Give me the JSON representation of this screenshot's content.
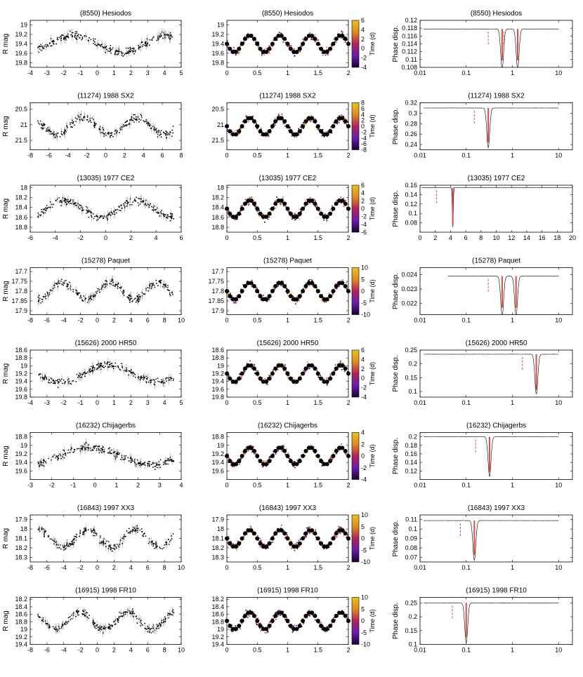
{
  "figure": {
    "colors": {
      "axis": "#000000",
      "points": "#000000",
      "errorbars": "#9a9a9a",
      "peak": "#e8473f",
      "median_dot": "#000000"
    },
    "colorbar_gradient": [
      "#1a0033",
      "#6a1cb0",
      "#b2225a",
      "#e08a1c",
      "#e8c21a"
    ]
  },
  "chart_data": [
    {
      "type": "scatter",
      "panel": "lightcurve",
      "title": "(8550) Hesiodos",
      "ylabel": "R mag",
      "xlim": [
        -4,
        5
      ],
      "ylim": [
        19.9,
        18.9
      ],
      "xticks": [
        -4,
        -3,
        -2,
        -1,
        0,
        1,
        2,
        3,
        4,
        5
      ],
      "yticks": [
        19,
        19.2,
        19.4,
        19.6,
        19.8
      ],
      "xticklabels": [
        "-4",
        "-3",
        "-2",
        "-1",
        "0",
        "1",
        "2",
        "3",
        "4",
        "5"
      ],
      "yticklabels": [
        "19",
        "19.2",
        "19.4",
        "19.6",
        "19.8"
      ]
    },
    {
      "type": "scatter",
      "panel": "phased",
      "title": "(8550) Hesiodos",
      "ylim": [
        19.9,
        18.9
      ],
      "xlim": [
        0,
        2
      ],
      "xticks": [
        0,
        0.5,
        1,
        1.5,
        2
      ],
      "xticklabels": [
        "0",
        "0.5",
        "1",
        "1.5",
        "2"
      ],
      "yticks": [
        19,
        19.2,
        19.4,
        19.6,
        19.8
      ],
      "yticklabels": [
        "19",
        "19.2",
        "19.4",
        "19.6",
        "19.8"
      ],
      "cbar_label": "Time (d)",
      "cbar_range": [
        -4,
        6
      ],
      "cbar_ticks": [
        -4,
        -2,
        0,
        2,
        4,
        6
      ],
      "cbar_ticklabels": [
        "-4",
        "-2",
        "0",
        "2",
        "4",
        "6"
      ]
    },
    {
      "type": "line",
      "panel": "periodogram",
      "title": "(8550) Hesiodos",
      "ylabel": "Phase disp.",
      "xscale": "log",
      "xlim": [
        0.01,
        20
      ],
      "ylim": [
        0.108,
        0.12
      ],
      "xticks": [
        0.01,
        0.1,
        1,
        10
      ],
      "xticklabels": [
        "0.01",
        "0.1",
        "1",
        "10"
      ],
      "yticks": [
        0.108,
        0.11,
        0.112,
        0.114,
        0.116,
        0.118,
        0.12
      ],
      "yticklabels": [
        "0.108",
        "0.11",
        "0.112",
        "0.114",
        "0.116",
        "0.118",
        "0.12"
      ],
      "peaks": [
        0.6,
        1.3
      ],
      "baseline": 0.1178,
      "start": 0.012
    },
    {
      "type": "scatter",
      "panel": "lightcurve",
      "title": "(11274) 1988 SX2",
      "ylabel": "R mag",
      "xlim": [
        -8,
        8
      ],
      "ylim": [
        21.8,
        20.3
      ],
      "xticks": [
        -8,
        -6,
        -4,
        -2,
        0,
        2,
        4,
        6,
        8
      ],
      "xticklabels": [
        "-8",
        "-6",
        "-4",
        "-2",
        "0",
        "2",
        "4",
        "6",
        "8"
      ],
      "yticks": [
        20.5,
        21,
        21.5
      ],
      "yticklabels": [
        "20.5",
        "21",
        "21.5"
      ]
    },
    {
      "type": "scatter",
      "panel": "phased",
      "title": "(11274) 1988 SX2",
      "ylim": [
        21.8,
        20.3
      ],
      "xlim": [
        0,
        2
      ],
      "xticks": [
        0,
        0.5,
        1,
        1.5,
        2
      ],
      "xticklabels": [
        "0",
        "0.5",
        "1",
        "1.5",
        "2"
      ],
      "yticks": [
        20.5,
        21,
        21.5
      ],
      "yticklabels": [
        "20.5",
        "21",
        "21.5"
      ],
      "cbar_label": "Time (d)",
      "cbar_range": [
        -8,
        8
      ],
      "cbar_ticks": [
        -8,
        -6,
        -4,
        -2,
        0,
        2,
        4,
        6,
        8
      ],
      "cbar_ticklabels": [
        "-8",
        "-6",
        "-4",
        "-2",
        "0",
        "2",
        "4",
        "6",
        "8"
      ]
    },
    {
      "type": "line",
      "panel": "periodogram",
      "title": "(11274) 1988 SX2",
      "ylabel": "Phase disp.",
      "xscale": "log",
      "xlim": [
        0.01,
        20
      ],
      "ylim": [
        0.23,
        0.32
      ],
      "xticks": [
        0.01,
        0.1,
        1,
        10
      ],
      "xticklabels": [
        "0.01",
        "0.1",
        "1",
        "10"
      ],
      "yticks": [
        0.24,
        0.26,
        0.28,
        0.3,
        0.32
      ],
      "yticklabels": [
        "0.24",
        "0.26",
        "0.28",
        "0.3",
        "0.32"
      ],
      "peaks": [
        0.3
      ],
      "baseline": 0.31,
      "start": 0.012
    },
    {
      "type": "scatter",
      "panel": "lightcurve",
      "title": "(13035) 1977 CE2",
      "ylabel": "R mag",
      "xlim": [
        -6,
        6
      ],
      "ylim": [
        18.9,
        17.95
      ],
      "xticks": [
        -6,
        -4,
        -2,
        0,
        2,
        4,
        6
      ],
      "xticklabels": [
        "-6",
        "-4",
        "-2",
        "0",
        "2",
        "4",
        "6"
      ],
      "yticks": [
        18,
        18.2,
        18.4,
        18.6,
        18.8
      ],
      "yticklabels": [
        "18",
        "18.2",
        "18.4",
        "18.6",
        "18.8"
      ]
    },
    {
      "type": "scatter",
      "panel": "phased",
      "title": "(13035) 1977 CE2",
      "ylim": [
        18.9,
        17.95
      ],
      "xlim": [
        0,
        2
      ],
      "xticks": [
        0,
        0.5,
        1,
        1.5,
        2
      ],
      "xticklabels": [
        "0",
        "0.5",
        "1",
        "1.5",
        "2"
      ],
      "yticks": [
        18,
        18.2,
        18.4,
        18.6,
        18.8
      ],
      "yticklabels": [
        "18",
        "18.2",
        "18.4",
        "18.6",
        "18.8"
      ],
      "cbar_label": "Time (d)",
      "cbar_range": [
        -6,
        6
      ],
      "cbar_ticks": [
        -6,
        -4,
        -2,
        0,
        2,
        4,
        6
      ],
      "cbar_ticklabels": [
        "-6",
        "-4",
        "-2",
        "0",
        "2",
        "4",
        "6"
      ]
    },
    {
      "type": "line",
      "panel": "periodogram",
      "title": "(13035) 1977 CE2",
      "ylabel": "Phase disp.",
      "xscale": "linear",
      "xlim": [
        0,
        20
      ],
      "ylim": [
        0.06,
        0.16
      ],
      "xticks": [
        0,
        2,
        4,
        6,
        8,
        10,
        12,
        14,
        16,
        18,
        20
      ],
      "xticklabels": [
        "0",
        "2",
        "4",
        "6",
        "8",
        "10",
        "12",
        "14",
        "16",
        "18",
        "20"
      ],
      "yticks": [
        0.08,
        0.1,
        0.12,
        0.14,
        0.16
      ],
      "yticklabels": [
        "0.08",
        "0.1",
        "0.12",
        "0.14",
        "0.16"
      ],
      "peaks": [
        4.3
      ],
      "baseline": 0.155,
      "start": 0.2
    },
    {
      "type": "scatter",
      "panel": "lightcurve",
      "title": "(15278) Paquet",
      "ylabel": "R mag",
      "xlim": [
        -8,
        10
      ],
      "ylim": [
        17.92,
        17.68
      ],
      "xticks": [
        -8,
        -6,
        -4,
        -2,
        0,
        2,
        4,
        6,
        8,
        10
      ],
      "xticklabels": [
        "-8",
        "-6",
        "-4",
        "-2",
        "0",
        "2",
        "4",
        "6",
        "8",
        "10"
      ],
      "yticks": [
        17.7,
        17.75,
        17.8,
        17.85,
        17.9
      ],
      "yticklabels": [
        "17.7",
        "17.75",
        "17.8",
        "17.85",
        "17.9"
      ]
    },
    {
      "type": "scatter",
      "panel": "phased",
      "title": "(15278) Paquet",
      "ylim": [
        17.92,
        17.68
      ],
      "xlim": [
        0,
        2
      ],
      "xticks": [
        0,
        0.5,
        1,
        1.5,
        2
      ],
      "xticklabels": [
        "0",
        "0.5",
        "1",
        "1.5",
        "2"
      ],
      "yticks": [
        17.7,
        17.75,
        17.8,
        17.85,
        17.9
      ],
      "yticklabels": [
        "17.7",
        "17.75",
        "17.8",
        "17.85",
        "17.9"
      ],
      "cbar_label": "Time (d)",
      "cbar_range": [
        -10,
        10
      ],
      "cbar_ticks": [
        -10,
        -5,
        0,
        5,
        10
      ],
      "cbar_ticklabels": [
        "-10",
        "-5",
        "0",
        "5",
        "10"
      ]
    },
    {
      "type": "line",
      "panel": "periodogram",
      "title": "(15278) Paquet",
      "ylabel": "Phase disp.",
      "xscale": "log",
      "xlim": [
        0.01,
        20
      ],
      "ylim": [
        0.0212,
        0.0245
      ],
      "xticks": [
        0.01,
        0.1,
        1,
        10
      ],
      "xticklabels": [
        "0.01",
        "0.1",
        "1",
        "10"
      ],
      "yticks": [
        0.022,
        0.023,
        0.024
      ],
      "yticklabels": [
        "0.022",
        "0.023",
        "0.024"
      ],
      "peaks": [
        0.6,
        1.2
      ],
      "baseline": 0.0239,
      "start": 0.04
    },
    {
      "type": "scatter",
      "panel": "lightcurve",
      "title": "(15626) 2000 HR50",
      "ylabel": "R mag",
      "xlim": [
        -4,
        5
      ],
      "ylim": [
        19.8,
        18.6
      ],
      "xticks": [
        -4,
        -3,
        -2,
        -1,
        0,
        1,
        2,
        3,
        4,
        5
      ],
      "xticklabels": [
        "-4",
        "-3",
        "-2",
        "-1",
        "0",
        "1",
        "2",
        "3",
        "4",
        "5"
      ],
      "yticks": [
        18.6,
        18.8,
        19,
        19.2,
        19.4,
        19.6,
        19.8
      ],
      "yticklabels": [
        "18.6",
        "18.8",
        "19",
        "19.2",
        "19.4",
        "19.6",
        "19.8"
      ]
    },
    {
      "type": "scatter",
      "panel": "phased",
      "title": "(15626) 2000 HR50",
      "ylim": [
        19.8,
        18.6
      ],
      "xlim": [
        0,
        2
      ],
      "xticks": [
        0,
        0.5,
        1,
        1.5,
        2
      ],
      "xticklabels": [
        "0",
        "0.5",
        "1",
        "1.5",
        "2"
      ],
      "yticks": [
        18.6,
        18.8,
        19,
        19.2,
        19.4,
        19.6,
        19.8
      ],
      "yticklabels": [
        "18.6",
        "18.8",
        "19",
        "19.2",
        "19.4",
        "19.6",
        "19.8"
      ],
      "cbar_label": "Time (d)",
      "cbar_range": [
        -4,
        6
      ],
      "cbar_ticks": [
        -4,
        -2,
        0,
        2,
        4,
        6
      ],
      "cbar_ticklabels": [
        "-4",
        "-2",
        "0",
        "2",
        "4",
        "6"
      ]
    },
    {
      "type": "line",
      "panel": "periodogram",
      "title": "(15626) 2000 HR50",
      "ylabel": "Phase disp.",
      "xscale": "log",
      "xlim": [
        0.01,
        20
      ],
      "ylim": [
        0.08,
        0.25
      ],
      "xticks": [
        0.01,
        0.1,
        1,
        10
      ],
      "xticklabels": [
        "0.01",
        "0.1",
        "1",
        "10"
      ],
      "yticks": [
        0.1,
        0.15,
        0.2,
        0.25
      ],
      "yticklabels": [
        "0.1",
        "0.15",
        "0.2",
        "0.25"
      ],
      "peaks": [
        3.3
      ],
      "baseline": 0.235,
      "start": 0.012
    },
    {
      "type": "scatter",
      "panel": "lightcurve",
      "title": "(16232) Chijagerbs",
      "ylabel": "R mag",
      "xlim": [
        -3,
        4
      ],
      "ylim": [
        19.8,
        18.7
      ],
      "xticks": [
        -3,
        -2,
        -1,
        0,
        1,
        2,
        3,
        4
      ],
      "xticklabels": [
        "-3",
        "-2",
        "-1",
        "0",
        "1",
        "2",
        "3",
        "4"
      ],
      "yticks": [
        18.8,
        19,
        19.2,
        19.4,
        19.6
      ],
      "yticklabels": [
        "18.8",
        "19",
        "19.2",
        "19.4",
        "19.6"
      ]
    },
    {
      "type": "scatter",
      "panel": "phased",
      "title": "(16232) Chijagerbs",
      "ylim": [
        19.8,
        18.7
      ],
      "xlim": [
        0,
        2
      ],
      "xticks": [
        0,
        0.5,
        1,
        1.5,
        2
      ],
      "xticklabels": [
        "0",
        "0.5",
        "1",
        "1.5",
        "2"
      ],
      "yticks": [
        18.8,
        19,
        19.2,
        19.4,
        19.6
      ],
      "yticklabels": [
        "18.8",
        "19",
        "19.2",
        "19.4",
        "19.6"
      ],
      "cbar_label": "Time (d)",
      "cbar_range": [
        -4,
        4
      ],
      "cbar_ticks": [
        -4,
        -2,
        0,
        2,
        4
      ],
      "cbar_ticklabels": [
        "-4",
        "-2",
        "0",
        "2",
        "4"
      ]
    },
    {
      "type": "line",
      "panel": "periodogram",
      "title": "(16232) Chijagerbs",
      "ylabel": "Phase disp.",
      "xscale": "log",
      "xlim": [
        0.01,
        20
      ],
      "ylim": [
        0.1,
        0.21
      ],
      "xticks": [
        0.01,
        0.1,
        1,
        10
      ],
      "xticklabels": [
        "0.01",
        "0.1",
        "1",
        "10"
      ],
      "yticks": [
        0.12,
        0.14,
        0.16,
        0.18,
        0.2
      ],
      "yticklabels": [
        "0.12",
        "0.14",
        "0.16",
        "0.18",
        "0.2"
      ],
      "peaks": [
        0.32
      ],
      "baseline": 0.2,
      "start": 0.012
    },
    {
      "type": "scatter",
      "panel": "lightcurve",
      "title": "(16843) 1997 XX3",
      "ylabel": "R mag",
      "xlim": [
        -8,
        10
      ],
      "ylim": [
        18.35,
        17.85
      ],
      "xticks": [
        -8,
        -6,
        -4,
        -2,
        0,
        2,
        4,
        6,
        8,
        10
      ],
      "xticklabels": [
        "-8",
        "-6",
        "-4",
        "-2",
        "0",
        "2",
        "4",
        "6",
        "8",
        "10"
      ],
      "yticks": [
        17.9,
        18,
        18.1,
        18.2,
        18.3
      ],
      "yticklabels": [
        "17.9",
        "18",
        "18.1",
        "18.2",
        "18.3"
      ]
    },
    {
      "type": "scatter",
      "panel": "phased",
      "title": "(16843) 1997 XX3",
      "ylim": [
        18.35,
        17.85
      ],
      "xlim": [
        0,
        2
      ],
      "xticks": [
        0,
        0.5,
        1,
        1.5,
        2
      ],
      "xticklabels": [
        "0",
        "0.5",
        "1",
        "1.5",
        "2"
      ],
      "yticks": [
        17.9,
        18,
        18.1,
        18.2,
        18.3
      ],
      "yticklabels": [
        "17.9",
        "18",
        "18.1",
        "18.2",
        "18.3"
      ],
      "cbar_label": "Time (d)",
      "cbar_range": [
        -10,
        10
      ],
      "cbar_ticks": [
        -10,
        -5,
        0,
        5,
        10
      ],
      "cbar_ticklabels": [
        "-10",
        "-5",
        "0",
        "5",
        "10"
      ]
    },
    {
      "type": "line",
      "panel": "periodogram",
      "title": "(16843) 1997 XX3",
      "ylabel": "Phase disp.",
      "xscale": "log",
      "xlim": [
        0.01,
        20
      ],
      "ylim": [
        0.065,
        0.115
      ],
      "xticks": [
        0.01,
        0.1,
        1,
        10
      ],
      "xticklabels": [
        "0.01",
        "0.1",
        "1",
        "10"
      ],
      "yticks": [
        0.07,
        0.08,
        0.09,
        0.1,
        0.11
      ],
      "yticklabels": [
        "0.07",
        "0.08",
        "0.09",
        "0.1",
        "0.11"
      ],
      "peaks": [
        0.15
      ],
      "baseline": 0.109,
      "start": 0.012
    },
    {
      "type": "scatter",
      "panel": "lightcurve",
      "title": "(16915) 1998 FR10",
      "ylabel": "R mag",
      "xlim": [
        -8,
        10
      ],
      "ylim": [
        19.4,
        18.15
      ],
      "xticks": [
        -8,
        -6,
        -4,
        -2,
        0,
        2,
        4,
        6,
        8,
        10
      ],
      "xticklabels": [
        "-8",
        "-6",
        "-4",
        "-2",
        "0",
        "2",
        "4",
        "6",
        "8",
        "10"
      ],
      "yticks": [
        18.2,
        18.4,
        18.6,
        18.8,
        19,
        19.2,
        19.4
      ],
      "yticklabels": [
        "18.2",
        "18.4",
        "18.6",
        "18.8",
        "19",
        "19.2",
        "19.4"
      ]
    },
    {
      "type": "scatter",
      "panel": "phased",
      "title": "(16915) 1998 FR10",
      "ylim": [
        19.4,
        18.15
      ],
      "xlim": [
        0,
        2
      ],
      "xticks": [
        0,
        0.5,
        1,
        1.5,
        2
      ],
      "xticklabels": [
        "0",
        "0.5",
        "1",
        "1.5",
        "2"
      ],
      "yticks": [
        18.2,
        18.4,
        18.6,
        18.8,
        19,
        19.2,
        19.4
      ],
      "yticklabels": [
        "18.2",
        "18.4",
        "18.6",
        "18.8",
        "19",
        "19.2",
        "19.4"
      ],
      "cbar_label": "Time (d)",
      "cbar_range": [
        -10,
        10
      ],
      "cbar_ticks": [
        -10,
        -5,
        0,
        5,
        10
      ],
      "cbar_ticklabels": [
        "-10",
        "-5",
        "0",
        "5",
        "10"
      ]
    },
    {
      "type": "line",
      "panel": "periodogram",
      "title": "(16915) 1998 FR10",
      "ylabel": "Phase disp.",
      "xscale": "log",
      "xlim": [
        0.01,
        20
      ],
      "ylim": [
        0.1,
        0.27
      ],
      "xticks": [
        0.01,
        0.1,
        1,
        10
      ],
      "xticklabels": [
        "0.01",
        "0.1",
        "1",
        "10"
      ],
      "yticks": [
        0.1,
        0.15,
        0.2,
        0.25
      ],
      "yticklabels": [
        "0.1",
        "0.15",
        "0.2",
        "0.25"
      ],
      "peaks": [
        0.1
      ],
      "baseline": 0.25,
      "start": 0.012
    }
  ]
}
